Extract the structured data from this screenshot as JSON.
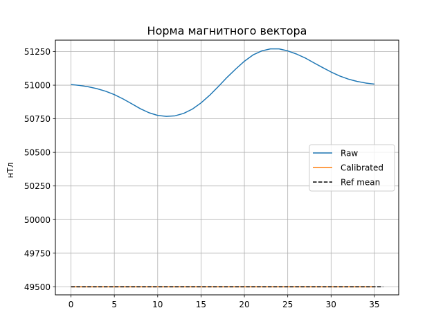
{
  "chart_data": {
    "type": "line",
    "title": "Норма магнитного вектора",
    "xlabel": "",
    "ylabel": "нТл",
    "xlim": [
      -1.8,
      37.8
    ],
    "ylim": [
      49440,
      51335
    ],
    "xticks": [
      0,
      5,
      10,
      15,
      20,
      25,
      30,
      35
    ],
    "yticks": [
      49500,
      49750,
      50000,
      50250,
      50500,
      50750,
      51000,
      51250
    ],
    "grid": true,
    "legend_position": "center-right",
    "series": [
      {
        "name": "Raw",
        "color": "#1f77b4",
        "style": "solid",
        "x": [
          0,
          1,
          2,
          3,
          4,
          5,
          6,
          7,
          8,
          9,
          10,
          11,
          12,
          13,
          14,
          15,
          16,
          17,
          18,
          19,
          20,
          21,
          22,
          23,
          24,
          25,
          26,
          27,
          28,
          29,
          30,
          31,
          32,
          33,
          34,
          35
        ],
        "y": [
          51005,
          50998,
          50988,
          50974,
          50955,
          50930,
          50898,
          50862,
          50825,
          50795,
          50775,
          50768,
          50772,
          50790,
          50822,
          50868,
          50925,
          50990,
          51058,
          51120,
          51178,
          51225,
          51255,
          51270,
          51270,
          51255,
          51232,
          51203,
          51167,
          51132,
          51098,
          51068,
          51045,
          51028,
          51016,
          51008
        ]
      },
      {
        "name": "Calibrated",
        "color": "#ff7f0e",
        "style": "solid",
        "x": [
          0,
          35
        ],
        "y": [
          49500,
          49500
        ]
      },
      {
        "name": "Ref mean",
        "color": "#000000",
        "style": "dashed",
        "x": [
          0,
          36
        ],
        "y": [
          49500,
          49500
        ]
      }
    ]
  }
}
